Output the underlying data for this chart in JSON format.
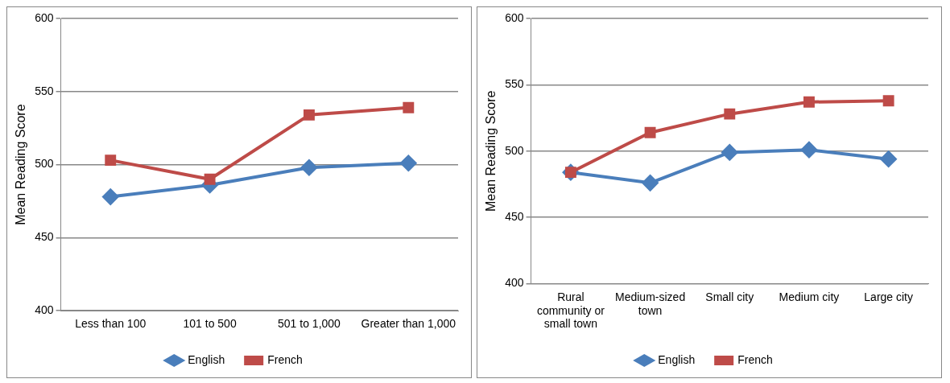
{
  "chart_data": [
    {
      "type": "line",
      "ylabel": "Mean Reading Score",
      "categories": [
        "Less than 100",
        "101 to 500",
        "501 to 1,000",
        "Greater than 1,000"
      ],
      "series": [
        {
          "name": "English",
          "color": "#4a7ebb",
          "marker": "diamond",
          "values": [
            478,
            486,
            498,
            501
          ]
        },
        {
          "name": "French",
          "color": "#be4b48",
          "marker": "square",
          "values": [
            503,
            490,
            534,
            539
          ]
        }
      ],
      "ylim": [
        400,
        600
      ],
      "yticks": [
        400,
        450,
        500,
        550,
        600
      ],
      "grid": "y",
      "legend": "bottom"
    },
    {
      "type": "line",
      "ylabel": "Mean Reading Score",
      "categories": [
        "Rural community or small town",
        "Medium-sized town",
        "Small city",
        "Medium city",
        "Large city"
      ],
      "series": [
        {
          "name": "English",
          "color": "#4a7ebb",
          "marker": "diamond",
          "values": [
            484,
            476,
            499,
            501,
            494
          ]
        },
        {
          "name": "French",
          "color": "#be4b48",
          "marker": "square",
          "values": [
            484,
            514,
            528,
            537,
            538
          ]
        }
      ],
      "ylim": [
        400,
        600
      ],
      "yticks": [
        400,
        450,
        500,
        550,
        600
      ],
      "grid": "y",
      "legend": "bottom"
    }
  ]
}
